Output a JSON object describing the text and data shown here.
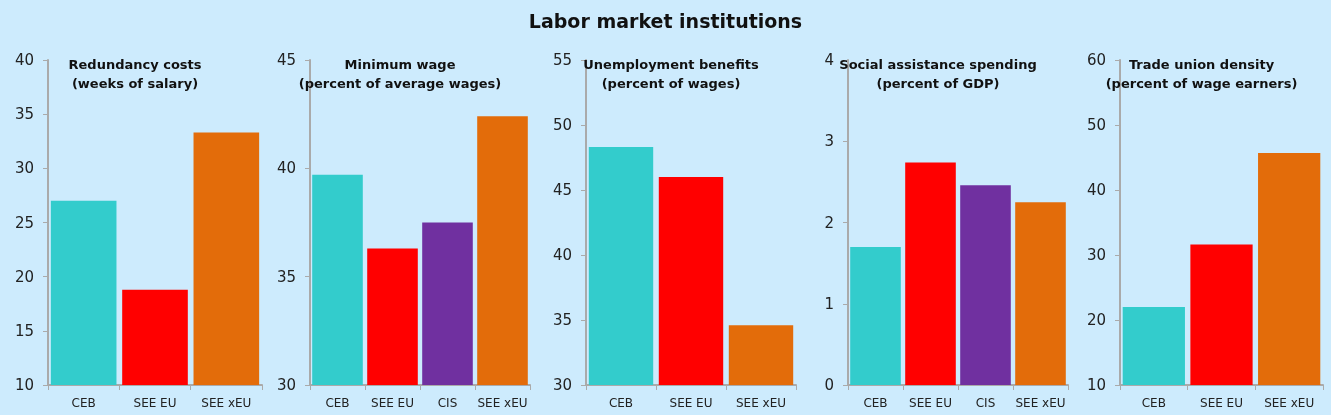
{
  "chart_data": [
    {
      "type": "other",
      "title": "Labor market institutions"
    },
    {
      "type": "bar",
      "title": "Redundancy costs\n(weeks of salary)",
      "categories": [
        "CEB",
        "SEE EU",
        "SEE xEU"
      ],
      "values": [
        27,
        18.8,
        33.3
      ],
      "colors": [
        "#33cccc",
        "#ff0000",
        "#e36c0a"
      ],
      "ylim": [
        10,
        40
      ],
      "yticks": [
        10,
        15,
        20,
        25,
        30,
        35,
        40
      ]
    },
    {
      "type": "bar",
      "title": "Minimum wage\n(percent of average wages)",
      "categories": [
        "CEB",
        "SEE EU",
        "CIS",
        "SEE xEU"
      ],
      "values": [
        39.7,
        36.3,
        37.5,
        42.4
      ],
      "colors": [
        "#33cccc",
        "#ff0000",
        "#7030a0",
        "#e36c0a"
      ],
      "ylim": [
        30,
        45
      ],
      "yticks": [
        30,
        35,
        40,
        45
      ]
    },
    {
      "type": "bar",
      "title": "Unemployment benefits\n(percent of wages)",
      "categories": [
        "CEB",
        "SEE EU",
        "SEE xEU"
      ],
      "values": [
        48.3,
        46,
        34.6
      ],
      "colors": [
        "#33cccc",
        "#ff0000",
        "#e36c0a"
      ],
      "ylim": [
        30,
        55
      ],
      "yticks": [
        30,
        35,
        40,
        45,
        50,
        55
      ]
    },
    {
      "type": "bar",
      "title": "Social assistance spending\n(percent of GDP)",
      "categories": [
        "CEB",
        "SEE EU",
        "CIS",
        "SEE xEU"
      ],
      "values": [
        1.7,
        2.74,
        2.46,
        2.25
      ],
      "colors": [
        "#33cccc",
        "#ff0000",
        "#7030a0",
        "#e36c0a"
      ],
      "ylim": [
        0,
        4
      ],
      "yticks": [
        0,
        1,
        2,
        3,
        4
      ]
    },
    {
      "type": "bar",
      "title": "Trade union density\n(percent of wage earners)",
      "categories": [
        "CEB",
        "SEE EU",
        "SEE xEU"
      ],
      "values": [
        22,
        31.6,
        45.7
      ],
      "colors": [
        "#33cccc",
        "#ff0000",
        "#e36c0a"
      ],
      "ylim": [
        10,
        60
      ],
      "yticks": [
        10,
        20,
        30,
        40,
        50,
        60
      ]
    }
  ]
}
